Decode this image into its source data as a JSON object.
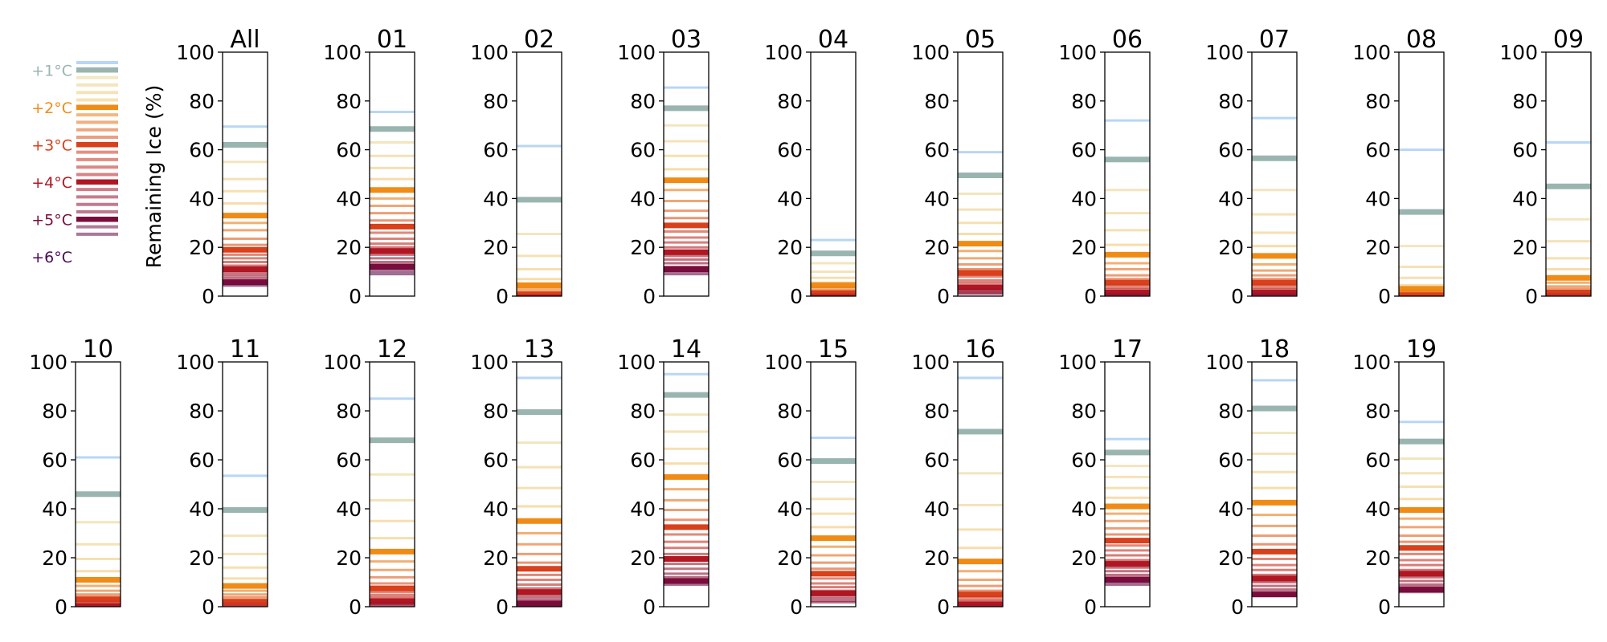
{
  "chart_data": {
    "type": "bar",
    "ylabel": "Remaining Ice (%)",
    "ylim": [
      0,
      100
    ],
    "yticks": [
      "0",
      "20",
      "40",
      "60",
      "80",
      "100"
    ],
    "grid": false,
    "legend_placement": "top-left",
    "legend": [
      {
        "label": "+1°C",
        "color": "#9ab5b0"
      },
      {
        "label": "+2°C",
        "color": "#f08c16"
      },
      {
        "label": "+3°C",
        "color": "#d9401c"
      },
      {
        "label": "+4°C",
        "color": "#b01722"
      },
      {
        "label": "+5°C",
        "color": "#7a0c3c"
      },
      {
        "label": "+6°C",
        "color": "#4a0a55"
      }
    ],
    "panels": [
      {
        "title": "All",
        "start": 69.5,
        "values": [
          62,
          55,
          48,
          43,
          38,
          33,
          30,
          27,
          23.5,
          21,
          19,
          17,
          15.5,
          14,
          12.5,
          11,
          9.5,
          8.5,
          7.5,
          6.5,
          5.7,
          5,
          4.3
        ]
      },
      {
        "title": "01",
        "start": 75.5,
        "values": [
          68.5,
          63,
          57.5,
          52.5,
          48,
          43.5,
          40,
          37,
          34,
          31,
          28.5,
          26,
          23.5,
          21.5,
          20,
          18.5,
          17,
          15.5,
          14,
          13,
          12,
          11,
          10,
          9
        ]
      },
      {
        "title": "02",
        "start": 61.5,
        "values": [
          39.5,
          25.5,
          16.5,
          11,
          7,
          4.5,
          3,
          2,
          1.5,
          1,
          0.7,
          0.5,
          0.3,
          0.2,
          0.1
        ]
      },
      {
        "title": "03",
        "start": 85.5,
        "values": [
          77,
          70,
          63.5,
          57.5,
          52,
          47.5,
          43.5,
          39,
          35,
          32,
          29,
          26.5,
          24,
          22,
          20,
          18,
          16.5,
          15,
          13.5,
          12,
          11,
          10,
          9
        ]
      },
      {
        "title": "04",
        "start": 23,
        "values": [
          17.5,
          13.5,
          10,
          7.5,
          5.5,
          4.5,
          3.5,
          2.5,
          2,
          1.5,
          1.2,
          0.9,
          0.6,
          0.4,
          0.2
        ]
      },
      {
        "title": "05",
        "start": 59,
        "values": [
          49.5,
          42,
          35.5,
          30,
          25.5,
          21.5,
          18.5,
          15.5,
          13,
          11,
          9.5,
          8,
          6.5,
          5.5,
          4.5,
          3.5,
          2.7,
          2,
          1.5,
          1
        ]
      },
      {
        "title": "06",
        "start": 72,
        "values": [
          56,
          43.5,
          34,
          27,
          21,
          17,
          13.5,
          11,
          8.5,
          7,
          5.5,
          4.5,
          3.5,
          2.7,
          2,
          1.5,
          1,
          0.7,
          0.4
        ]
      },
      {
        "title": "07",
        "start": 73,
        "values": [
          56.5,
          43.5,
          33.5,
          26,
          20.5,
          16.5,
          13,
          10.5,
          8.5,
          7,
          5.5,
          4.5,
          3.5,
          2.7,
          2,
          1.5,
          1,
          0.7,
          0.4
        ]
      },
      {
        "title": "08",
        "start": 60,
        "values": [
          34.5,
          20.5,
          12,
          7.5,
          4.5,
          3,
          2,
          1.3,
          0.9,
          0.6,
          0.4,
          0.2
        ]
      },
      {
        "title": "09",
        "start": 63,
        "values": [
          45,
          31.5,
          22.5,
          15.5,
          11,
          7.5,
          5.5,
          4,
          3,
          2,
          1.5,
          1,
          0.6,
          0.3
        ]
      },
      {
        "title": "10",
        "start": 61,
        "values": [
          46,
          34.5,
          25.5,
          19.5,
          14.5,
          11,
          8.5,
          6.5,
          5,
          4,
          3,
          2.2,
          1.5,
          1,
          0.6,
          0.3
        ]
      },
      {
        "title": "11",
        "start": 53.5,
        "values": [
          39.5,
          29,
          21.5,
          16,
          11.5,
          8.5,
          6.5,
          5,
          3.8,
          2.8,
          2,
          1.4,
          0.9,
          0.5,
          0.2
        ]
      },
      {
        "title": "12",
        "start": 85,
        "values": [
          68,
          54,
          43.5,
          35,
          28,
          22.5,
          18.5,
          15,
          12,
          9.5,
          7.5,
          6,
          4.8,
          3.8,
          3,
          2.2,
          1.5,
          1,
          0.5
        ]
      },
      {
        "title": "13",
        "start": 93.5,
        "values": [
          79.5,
          67,
          57,
          48.5,
          41,
          35,
          30,
          25.5,
          21.5,
          18,
          15.5,
          13,
          11,
          9,
          7.5,
          6,
          4.8,
          3.8,
          2.8,
          2,
          1.3
        ]
      },
      {
        "title": "14",
        "start": 95,
        "values": [
          86.5,
          78.5,
          71.5,
          64.5,
          58.5,
          53,
          48,
          43.5,
          39.5,
          35.5,
          32.5,
          29.5,
          26.5,
          24,
          21.5,
          19.5,
          17.5,
          15.5,
          13.5,
          12,
          10.5,
          9
        ]
      },
      {
        "title": "15",
        "start": 69,
        "values": [
          59.5,
          51,
          44,
          38,
          32.5,
          28,
          24.5,
          21,
          18,
          15.5,
          13.5,
          11.5,
          9.5,
          8,
          6.5,
          5.5,
          4.5,
          3.5,
          2.5,
          1.8
        ]
      },
      {
        "title": "16",
        "start": 93.5,
        "values": [
          71.5,
          54.5,
          41.5,
          31.5,
          24,
          18.5,
          14.5,
          11,
          8.5,
          6.5,
          5,
          4,
          3,
          2.2,
          1.5,
          1,
          0.5
        ]
      },
      {
        "title": "17",
        "start": 68.5,
        "values": [
          63,
          57.5,
          53,
          48.5,
          44.5,
          41,
          38,
          35,
          32,
          29.5,
          27,
          25,
          23,
          21,
          19,
          17.5,
          16,
          14.5,
          13,
          12,
          11,
          10,
          9
        ]
      },
      {
        "title": "18",
        "start": 92.5,
        "values": [
          81,
          71,
          62.5,
          55,
          48.5,
          42.5,
          37.5,
          33,
          29,
          25.5,
          22.5,
          19.5,
          17,
          15,
          13,
          11.5,
          10,
          8.5,
          7,
          6,
          5
        ]
      },
      {
        "title": "19",
        "start": 75.5,
        "values": [
          67.5,
          60.5,
          54.5,
          49,
          44,
          39.5,
          36,
          32.5,
          29,
          26.5,
          24,
          21.5,
          19,
          17,
          15,
          13.5,
          12,
          10.5,
          9,
          8,
          7,
          6
        ]
      }
    ]
  }
}
